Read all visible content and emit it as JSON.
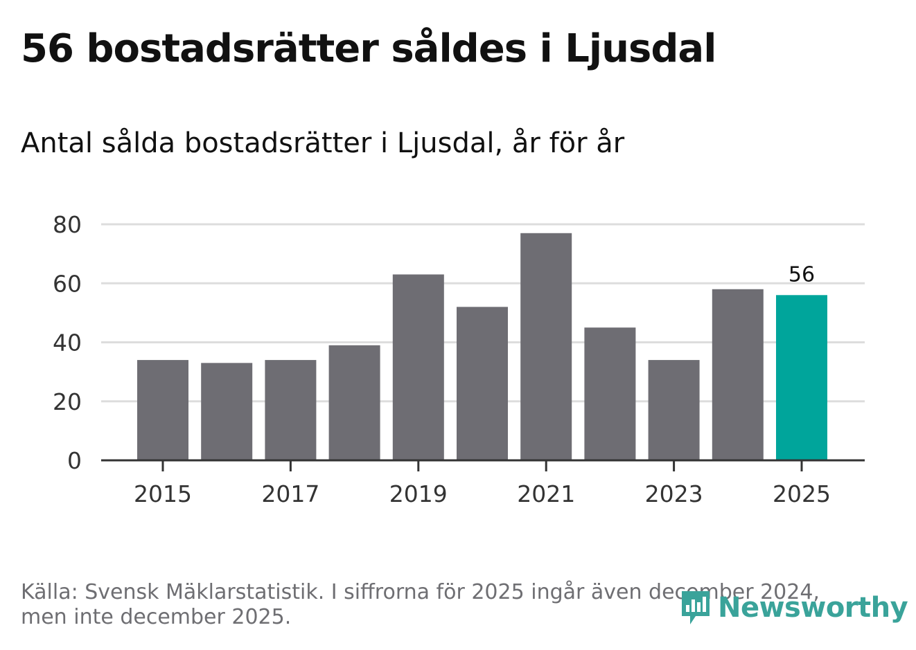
{
  "title": "56 bostadsrätter såldes i Ljusdal",
  "chart_data": {
    "type": "bar",
    "title": "56 bostadsrätter såldes i Ljusdal",
    "subtitle": "Antal sålda bostadsrätter i Ljusdal, år för år",
    "xlabel": "",
    "ylabel": "",
    "categories": [
      "2015",
      "2016",
      "2017",
      "2018",
      "2019",
      "2020",
      "2021",
      "2022",
      "2023",
      "2024",
      "2025"
    ],
    "values": [
      34,
      33,
      34,
      39,
      63,
      52,
      77,
      45,
      34,
      58,
      56
    ],
    "x_tick_labels": [
      "2015",
      "2017",
      "2019",
      "2021",
      "2023",
      "2025"
    ],
    "y_ticks": [
      0,
      20,
      40,
      60,
      80
    ],
    "ylim": [
      0,
      80
    ],
    "grid": true,
    "highlight_index": 10,
    "highlight_label": "56",
    "colors": {
      "bar": "#6e6d73",
      "highlight": "#00a59b",
      "grid": "#dddddd",
      "axis": "#333333"
    }
  },
  "footnote": {
    "line1": "Källa: Svensk Mäklarstatistik. I siffrorna för 2025 ingår även december 2024,",
    "line2": "men inte december 2025."
  },
  "logo": {
    "text": "Newsworthy",
    "icon": "newsworthy-logo-icon",
    "color": "#3aa39a"
  }
}
